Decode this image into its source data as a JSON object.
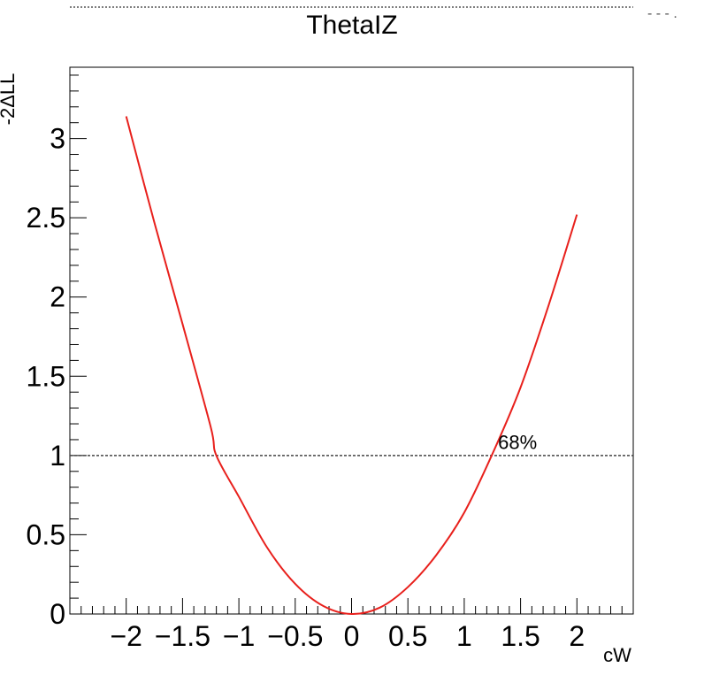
{
  "chart_data": {
    "type": "line",
    "title": "ThetaIZ",
    "xlabel": "cW",
    "ylabel": "-2ΔLL",
    "xlim": [
      -2.5,
      2.5
    ],
    "ylim": [
      0,
      3.45
    ],
    "x_ticks": [
      -2,
      -1.5,
      -1,
      -0.5,
      0,
      0.5,
      1,
      1.5,
      2
    ],
    "x_tick_labels": [
      "−2",
      "−1.5",
      "−1",
      "−0.5",
      "0",
      "0.5",
      "1",
      "1.5",
      "2"
    ],
    "y_ticks": [
      0,
      0.5,
      1,
      1.5,
      2,
      2.5,
      3
    ],
    "y_tick_labels": [
      "0",
      "0.5",
      "1",
      "1.5",
      "2",
      "2.5",
      "3"
    ],
    "grid": false,
    "legend": "none",
    "series": [
      {
        "color": "#e8201c",
        "x": [
          -2.0,
          -1.75,
          -1.5,
          -1.25,
          -1.2,
          -1.0,
          -0.75,
          -0.5,
          -0.25,
          0.0,
          0.25,
          0.5,
          0.75,
          1.0,
          1.25,
          1.5,
          1.75,
          2.0
        ],
        "y": [
          3.14,
          2.47,
          1.83,
          1.18,
          1.0,
          0.74,
          0.42,
          0.19,
          0.05,
          0.0,
          0.04,
          0.17,
          0.37,
          0.64,
          1.01,
          1.43,
          1.95,
          2.52
        ]
      }
    ],
    "annotations": [
      {
        "text": "68%",
        "x": 1.3,
        "y": 1.04,
        "line_y": 1.0,
        "line_style": "dotted"
      }
    ]
  },
  "legend_stub": "- - - ."
}
